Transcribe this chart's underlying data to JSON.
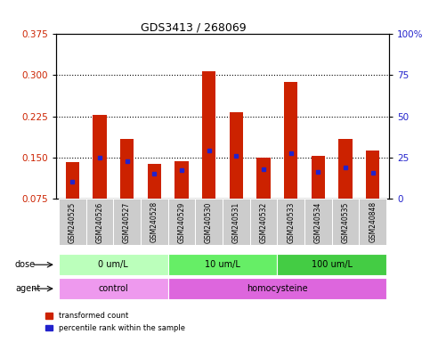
{
  "title": "GDS3413 / 268069",
  "samples": [
    "GSM240525",
    "GSM240526",
    "GSM240527",
    "GSM240528",
    "GSM240529",
    "GSM240530",
    "GSM240531",
    "GSM240532",
    "GSM240533",
    "GSM240534",
    "GSM240535",
    "GSM240848"
  ],
  "red_values": [
    0.142,
    0.228,
    0.183,
    0.138,
    0.143,
    0.307,
    0.233,
    0.149,
    0.287,
    0.153,
    0.183,
    0.163
  ],
  "blue_values": [
    0.105,
    0.15,
    0.143,
    0.12,
    0.127,
    0.163,
    0.153,
    0.128,
    0.157,
    0.123,
    0.132,
    0.122
  ],
  "ylim_left": [
    0.075,
    0.375
  ],
  "ylim_right": [
    0,
    100
  ],
  "yticks_left": [
    0.075,
    0.15,
    0.225,
    0.3,
    0.375
  ],
  "yticks_right": [
    0,
    25,
    50,
    75,
    100
  ],
  "bar_color": "#cc2200",
  "blue_color": "#2222cc",
  "dose_groups": [
    {
      "label": "0 um/L",
      "start": 0,
      "end": 3,
      "color": "#bbffbb"
    },
    {
      "label": "10 um/L",
      "start": 4,
      "end": 7,
      "color": "#66ee66"
    },
    {
      "label": "100 um/L",
      "start": 8,
      "end": 11,
      "color": "#44cc44"
    }
  ],
  "agent_groups": [
    {
      "label": "control",
      "start": 0,
      "end": 3,
      "color": "#ee99ee"
    },
    {
      "label": "homocysteine",
      "start": 4,
      "end": 11,
      "color": "#dd66dd"
    }
  ],
  "dose_label": "dose",
  "agent_label": "agent",
  "legend_red": "transformed count",
  "legend_blue": "percentile rank within the sample",
  "bar_width": 0.5,
  "grid_yticks": [
    0.15,
    0.225,
    0.3
  ]
}
